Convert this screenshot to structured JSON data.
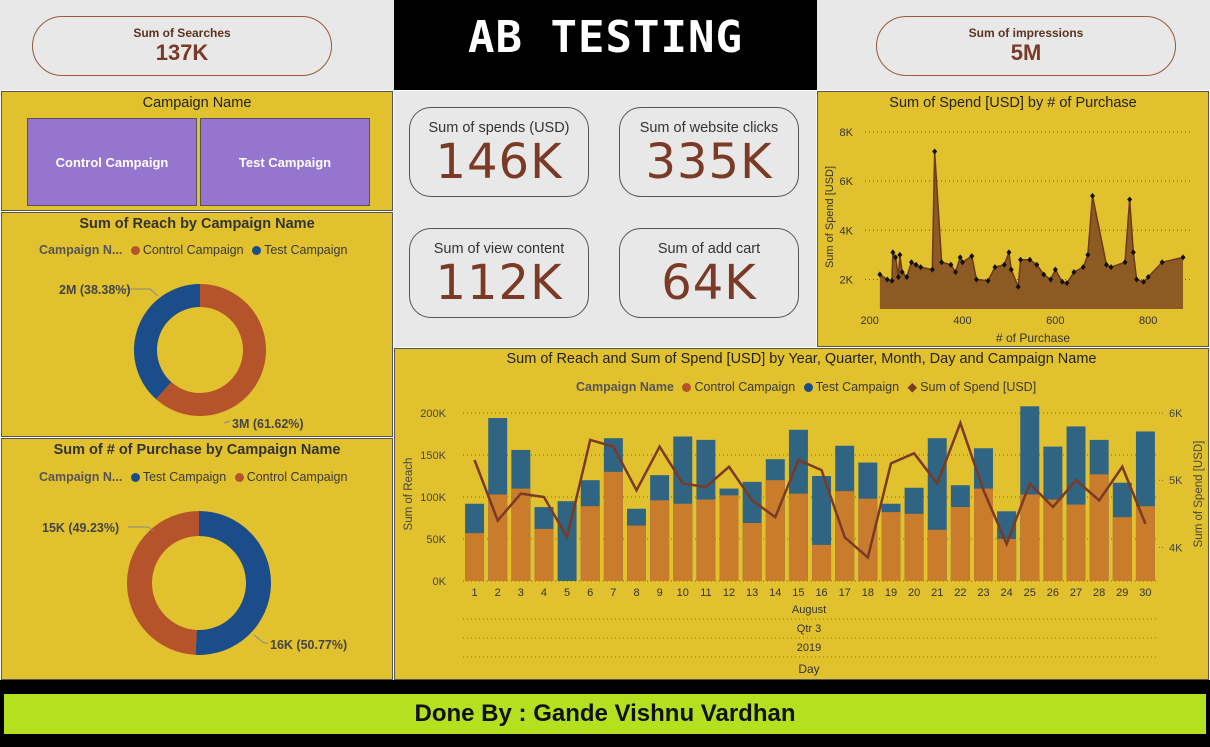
{
  "title": "AB TESTING",
  "kpi_top": {
    "searches_label": "Sum of Searches",
    "searches_value": "137K",
    "impressions_label": "Sum of impressions",
    "impressions_value": "5M"
  },
  "cards": [
    {
      "label": "Sum of spends (USD)",
      "value": "146K"
    },
    {
      "label": "Sum of website clicks",
      "value": "335K"
    },
    {
      "label": "Sum of view content",
      "value": "112K"
    },
    {
      "label": "Sum of add cart",
      "value": "64K"
    }
  ],
  "slicer": {
    "title": "Campaign Name",
    "options": [
      "Control Campaign",
      "Test Campaign"
    ]
  },
  "colors": {
    "control": "#B5532A",
    "test": "#1B4D8A",
    "spend": "#7A3A25",
    "bar_control": "#C97C2B",
    "bar_test": "#2F6483",
    "area": "#8E5A23"
  },
  "footer": "Done By : Gande Vishnu Vardhan",
  "chart_data": [
    {
      "type": "pie",
      "title": "Sum of Reach by Campaign Name",
      "legend_title": "Campaign N...",
      "legend": [
        "Control Campaign",
        "Test Campaign"
      ],
      "slices": [
        {
          "name": "Control Campaign",
          "value": 61.62,
          "label": "3M (61.62%)"
        },
        {
          "name": "Test Campaign",
          "value": 38.38,
          "label": "2M (38.38%)"
        }
      ]
    },
    {
      "type": "pie",
      "title": "Sum of # of Purchase by Campaign Name",
      "legend_title": "Campaign N...",
      "legend": [
        "Test Campaign",
        "Control Campaign"
      ],
      "slices": [
        {
          "name": "Test Campaign",
          "value": 50.77,
          "label": "16K (50.77%)"
        },
        {
          "name": "Control Campaign",
          "value": 49.23,
          "label": "15K (49.23%)"
        }
      ]
    },
    {
      "type": "area",
      "title": "Sum of Spend [USD] by # of Purchase",
      "xlabel": "# of Purchase",
      "ylabel": "Sum of Spend [USD]",
      "xticks": [
        200,
        400,
        600,
        800
      ],
      "yticks": [
        2000,
        4000,
        6000,
        8000
      ],
      "ytick_labels": [
        "2K",
        "4K",
        "6K",
        "8K"
      ],
      "xlim": [
        190,
        890
      ],
      "ylim": [
        800,
        8400
      ],
      "points": [
        [
          222,
          2200
        ],
        [
          238,
          2000
        ],
        [
          248,
          1950
        ],
        [
          250,
          3100
        ],
        [
          256,
          2900
        ],
        [
          262,
          2100
        ],
        [
          265,
          3000
        ],
        [
          270,
          2300
        ],
        [
          280,
          2100
        ],
        [
          290,
          2700
        ],
        [
          300,
          2600
        ],
        [
          310,
          2500
        ],
        [
          335,
          2400
        ],
        [
          340,
          7200
        ],
        [
          355,
          2700
        ],
        [
          375,
          2600
        ],
        [
          385,
          2300
        ],
        [
          395,
          2900
        ],
        [
          400,
          2700
        ],
        [
          420,
          2950
        ],
        [
          430,
          2000
        ],
        [
          455,
          1950
        ],
        [
          470,
          2500
        ],
        [
          490,
          2600
        ],
        [
          500,
          3100
        ],
        [
          505,
          2400
        ],
        [
          520,
          1700
        ],
        [
          525,
          2800
        ],
        [
          545,
          2800
        ],
        [
          560,
          2600
        ],
        [
          575,
          2200
        ],
        [
          590,
          2000
        ],
        [
          600,
          2400
        ],
        [
          615,
          1900
        ],
        [
          625,
          1850
        ],
        [
          640,
          2300
        ],
        [
          660,
          2500
        ],
        [
          670,
          3000
        ],
        [
          680,
          5400
        ],
        [
          710,
          2600
        ],
        [
          720,
          2500
        ],
        [
          750,
          2700
        ],
        [
          760,
          5250
        ],
        [
          768,
          3100
        ],
        [
          775,
          2000
        ],
        [
          790,
          1900
        ],
        [
          800,
          2100
        ],
        [
          830,
          2700
        ],
        [
          875,
          2900
        ]
      ]
    },
    {
      "type": "bar",
      "title": "Sum of Reach and Sum of Spend [USD] by Year, Quarter, Month, Day and Campaign Name",
      "legend_title": "Campaign Name",
      "legend": [
        "Control Campaign",
        "Test Campaign",
        "Sum of Spend [USD]"
      ],
      "xlabel": "Day",
      "ylabel": "Sum of Reach",
      "y2label": "Sum of Spend [USD]",
      "hierarchy": [
        "August",
        "Qtr 3",
        "2019"
      ],
      "categories": [
        "1",
        "2",
        "3",
        "4",
        "5",
        "6",
        "7",
        "8",
        "9",
        "10",
        "11",
        "12",
        "13",
        "14",
        "15",
        "16",
        "17",
        "18",
        "19",
        "20",
        "21",
        "22",
        "23",
        "24",
        "25",
        "26",
        "27",
        "28",
        "29",
        "30"
      ],
      "yticks": [
        0,
        50000,
        100000,
        150000,
        200000
      ],
      "ytick_labels": [
        "0K",
        "50K",
        "100K",
        "150K",
        "200K"
      ],
      "y2ticks": [
        4000,
        5000,
        6000
      ],
      "y2tick_labels": [
        "4K",
        "5K",
        "6K"
      ],
      "ylim": [
        0,
        200000
      ],
      "y2lim": [
        3500,
        6000
      ],
      "series": [
        {
          "name": "Control Campaign",
          "values": [
            57000,
            103000,
            110000,
            62000,
            0,
            89000,
            130000,
            66000,
            96000,
            92000,
            97000,
            102000,
            69000,
            120000,
            104000,
            43000,
            107000,
            98000,
            82000,
            80000,
            61000,
            88000,
            110000,
            50000,
            103000,
            97000,
            91000,
            127000,
            76000,
            89000
          ]
        },
        {
          "name": "Test Campaign",
          "values": [
            92000,
            194000,
            156000,
            88000,
            95000,
            120000,
            170000,
            86000,
            126000,
            172000,
            168000,
            110000,
            118000,
            145000,
            180000,
            125000,
            161000,
            141000,
            92000,
            111000,
            170000,
            114000,
            158000,
            83000,
            208000,
            160000,
            184000,
            168000,
            117000,
            178000
          ]
        },
        {
          "name": "Sum of Spend [USD]",
          "values": [
            5300,
            4400,
            4800,
            4750,
            4150,
            5600,
            5500,
            4850,
            5500,
            4950,
            4900,
            5200,
            4700,
            4450,
            5300,
            5150,
            4150,
            3850,
            5250,
            5400,
            4950,
            5850,
            4850,
            4050,
            4950,
            4600,
            5000,
            4700,
            5200,
            4350
          ]
        }
      ]
    }
  ]
}
